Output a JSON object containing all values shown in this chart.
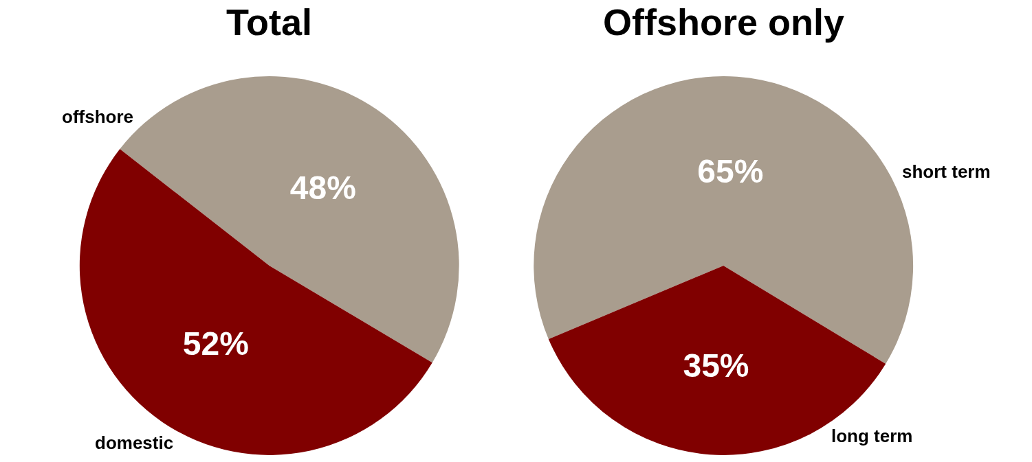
{
  "chart_data": [
    {
      "type": "pie",
      "title": "Total",
      "categories": [
        "offshore",
        "domestic"
      ],
      "values": [
        48,
        52
      ],
      "colors": [
        "#a99d8e",
        "#800000"
      ],
      "value_labels": [
        "48%",
        "52%"
      ]
    },
    {
      "type": "pie",
      "title": "Offshore only",
      "categories": [
        "short term",
        "long term"
      ],
      "values": [
        65,
        35
      ],
      "colors": [
        "#a99d8e",
        "#800000"
      ],
      "value_labels": [
        "65%",
        "35%"
      ]
    }
  ]
}
